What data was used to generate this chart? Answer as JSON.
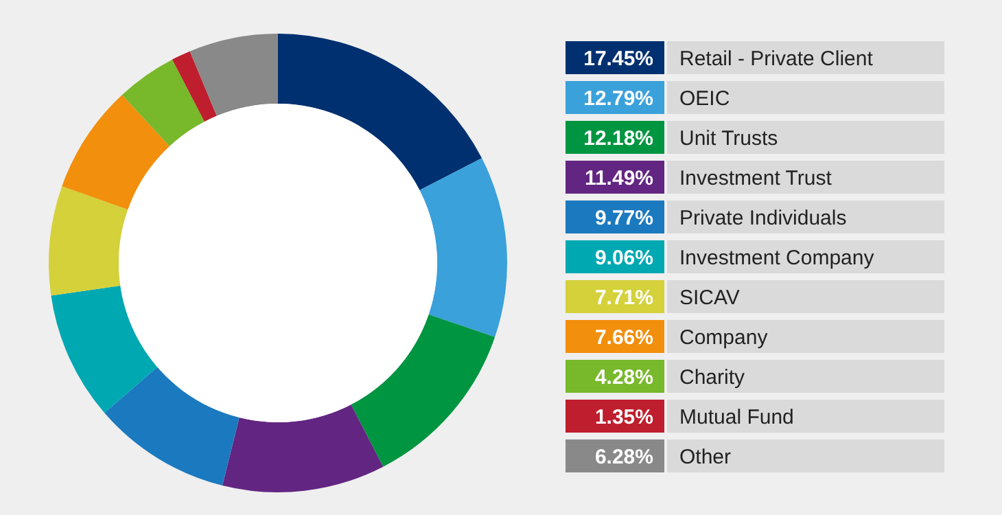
{
  "chart_data": {
    "type": "donut",
    "categories": [
      "Retail - Private Client",
      "OEIC",
      "Unit Trusts",
      "Investment Trust",
      "Private Individuals",
      "Investment Company",
      "SICAV",
      "Company",
      "Charity",
      "Mutual Fund",
      "Other"
    ],
    "values": [
      17.45,
      12.79,
      12.18,
      11.49,
      9.77,
      9.06,
      7.71,
      7.66,
      4.28,
      1.35,
      6.28
    ],
    "value_labels": [
      "17.45%",
      "12.79%",
      "12.18%",
      "11.49%",
      "9.77%",
      "9.06%",
      "7.71%",
      "7.66%",
      "4.28%",
      "1.35%",
      "6.28%"
    ],
    "colors": [
      "#003070",
      "#3aa1db",
      "#009540",
      "#622682",
      "#1b79bf",
      "#00a8b2",
      "#d4d13b",
      "#f28f0c",
      "#78b82b",
      "#be1e2d",
      "#898989"
    ],
    "legend": "right"
  }
}
